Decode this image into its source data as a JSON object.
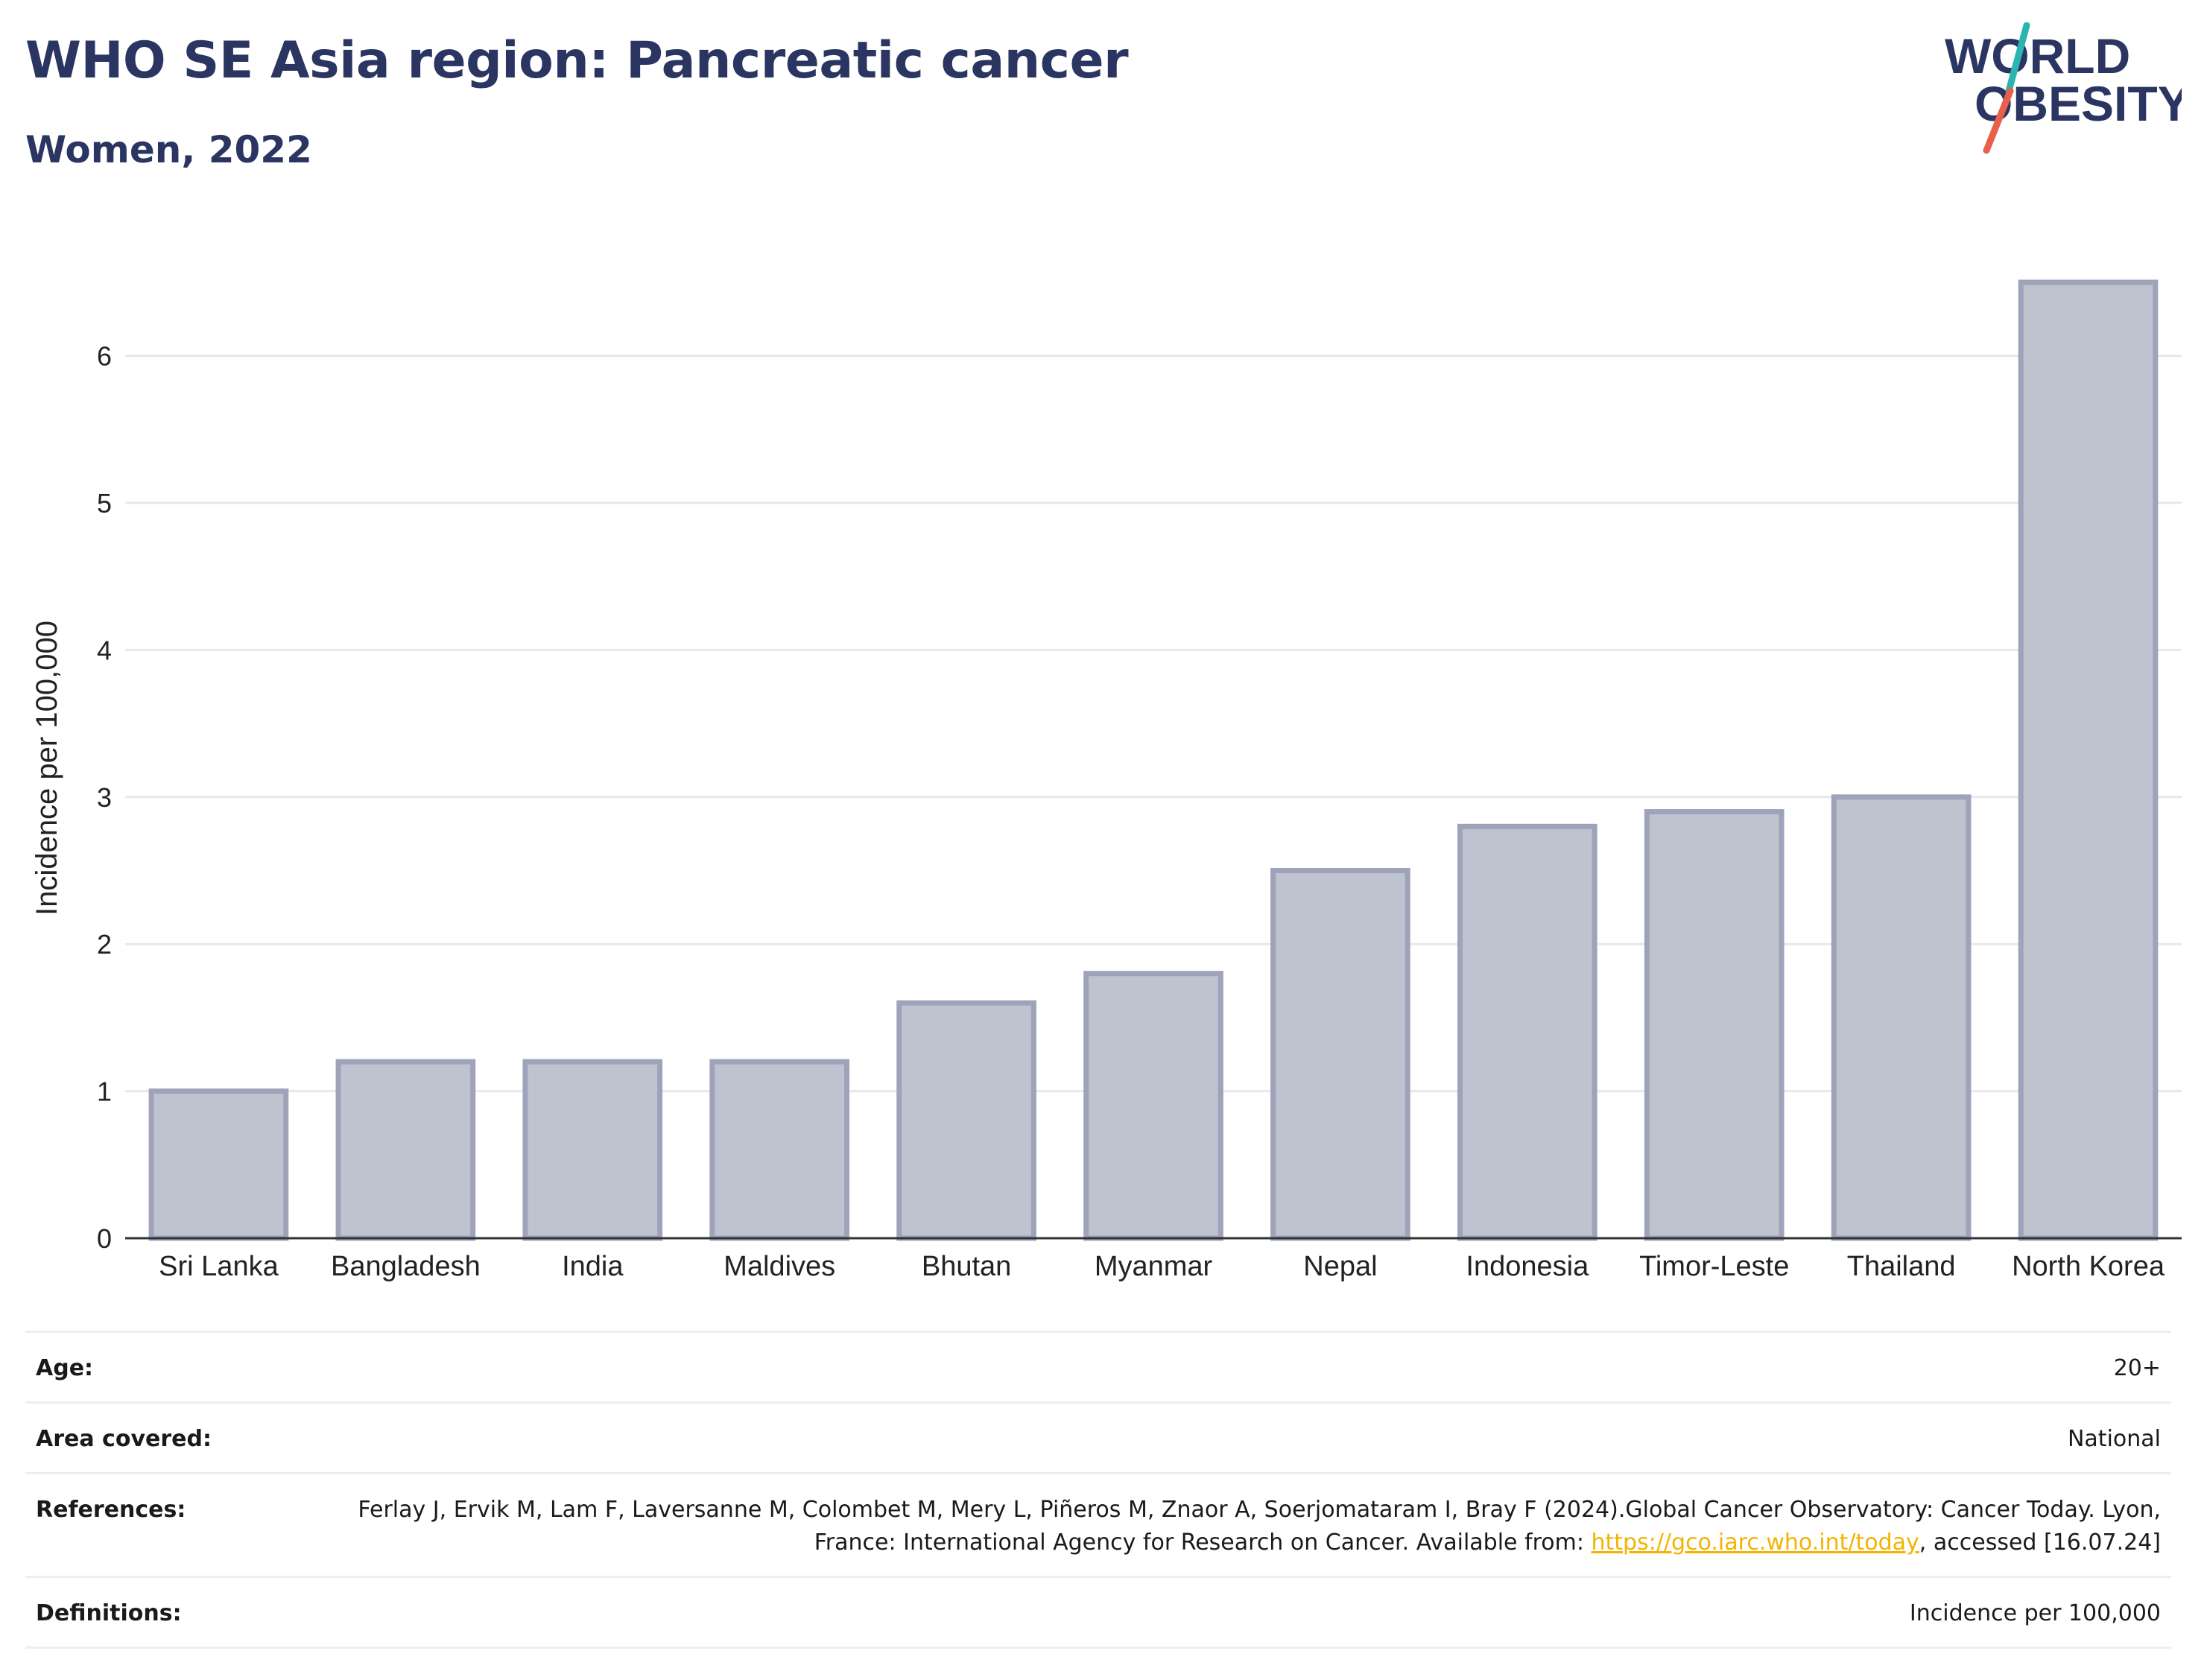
{
  "header": {
    "title": "WHO SE Asia region: Pancreatic cancer",
    "subtitle": "Women, 2022",
    "logo_line1": "WORLD",
    "logo_line2": "OBESITY"
  },
  "chart_data": {
    "type": "bar",
    "categories": [
      "Sri Lanka",
      "Bangladesh",
      "India",
      "Maldives",
      "Bhutan",
      "Myanmar",
      "Nepal",
      "Indonesia",
      "Timor-Leste",
      "Thailand",
      "North Korea"
    ],
    "values": [
      1.0,
      1.2,
      1.2,
      1.2,
      1.6,
      1.8,
      2.5,
      2.8,
      2.9,
      3.0,
      6.5
    ],
    "ylabel": "Incidence per 100,000",
    "xlabel": "",
    "ylim": [
      0,
      6.9
    ],
    "yticks": [
      0,
      1,
      2,
      3,
      4,
      5,
      6
    ],
    "grid": true,
    "bar_fill": "#bfc2cf",
    "bar_stroke": "#9ea3ba"
  },
  "meta": {
    "age_label": "Age:",
    "age_value": "20+",
    "area_label": "Area covered:",
    "area_value": "National",
    "references_label": "References:",
    "references_text_1": "Ferlay J, Ervik M, Lam F, Laversanne M, Colombet M, Mery L, Piñeros M, Znaor A, Soerjomataram I, Bray F (2024).Global Cancer Observatory: Cancer Today. Lyon, France: International Agency for Research on Cancer. Available from: ",
    "references_link": "https://gco.iarc.who.int/today",
    "references_text_2": ", accessed [16.07.24]",
    "definitions_label": "Definitions:",
    "definitions_value": "Incidence per 100,000"
  },
  "colors": {
    "title": "#2b3561",
    "link": "#f2b400",
    "logo_teal": "#2bb5b0",
    "logo_red": "#e8604c"
  }
}
